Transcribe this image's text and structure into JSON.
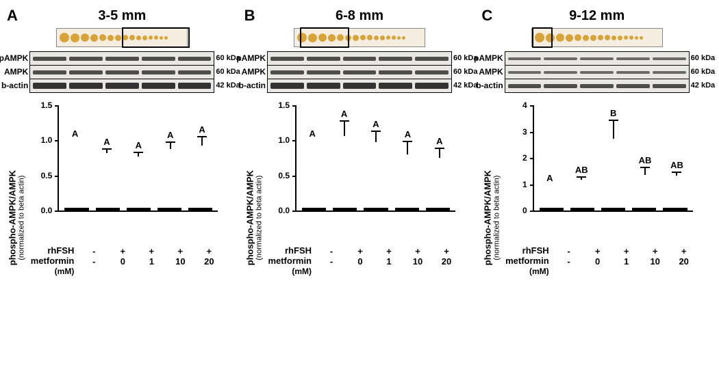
{
  "panels": [
    {
      "letter": "A",
      "title": "3-5 mm",
      "selbox": {
        "left_pct": 50,
        "width_pct": 50
      },
      "blot": {
        "rows": [
          "pAMPK",
          "AMPK",
          "b-actin"
        ],
        "kda": [
          "60 kDa",
          "60 kDa",
          "42 kDa"
        ],
        "band_class": [
          "mid",
          "mid",
          "thick"
        ]
      },
      "chart": {
        "ylim": [
          0,
          1.5
        ],
        "ytick_step": 0.5,
        "ylabel": "phospho-AMPK/AMPK",
        "ysub": "(normalized to beta actin)",
        "bars": [
          {
            "v": 1.0,
            "err": 0.0,
            "sig": "A",
            "fill": "open"
          },
          {
            "v": 0.82,
            "err": 0.07,
            "sig": "A",
            "fill": "dots"
          },
          {
            "v": 0.77,
            "err": 0.07,
            "sig": "A",
            "fill": "diag"
          },
          {
            "v": 0.88,
            "err": 0.1,
            "sig": "A",
            "fill": "grid"
          },
          {
            "v": 0.93,
            "err": 0.13,
            "sig": "A",
            "fill": "solid"
          }
        ]
      },
      "treat": {
        "rhFSH": [
          "-",
          "+",
          "+",
          "+",
          "+"
        ],
        "metformin": [
          "-",
          "0",
          "1",
          "10",
          "20"
        ]
      }
    },
    {
      "letter": "B",
      "title": "6-8 mm",
      "selbox": {
        "left_pct": 4,
        "width_pct": 36
      },
      "blot": {
        "rows": [
          "pAMPK",
          "AMPK",
          "b-actin"
        ],
        "kda": [
          "60 kDa",
          "60 kDa",
          "42 kDa"
        ],
        "band_class": [
          "mid",
          "mid",
          "thick"
        ]
      },
      "chart": {
        "ylim": [
          0,
          1.5
        ],
        "ytick_step": 0.5,
        "ylabel": "phospho-AMPK/AMPK",
        "ysub": "(normalized to beta actin)",
        "bars": [
          {
            "v": 1.0,
            "err": 0.0,
            "sig": "A",
            "fill": "open"
          },
          {
            "v": 1.06,
            "err": 0.23,
            "sig": "A",
            "fill": "dots"
          },
          {
            "v": 0.97,
            "err": 0.17,
            "sig": "A",
            "fill": "diag"
          },
          {
            "v": 0.8,
            "err": 0.19,
            "sig": "A",
            "fill": "grid"
          },
          {
            "v": 0.75,
            "err": 0.15,
            "sig": "A",
            "fill": "solid"
          }
        ]
      },
      "treat": {
        "rhFSH": [
          "-",
          "+",
          "+",
          "+",
          "+"
        ],
        "metformin": [
          "-",
          "0",
          "1",
          "10",
          "20"
        ]
      }
    },
    {
      "letter": "C",
      "title": "9-12 mm",
      "selbox": {
        "left_pct": 0,
        "width_pct": 14
      },
      "blot": {
        "rows": [
          "pAMPK",
          "AMPK",
          "b-actin"
        ],
        "kda": [
          "60 kDa",
          "60 kDa",
          "42 kDa"
        ],
        "band_class": [
          "thin",
          "thin",
          "mid"
        ]
      },
      "chart": {
        "ylim": [
          0,
          4
        ],
        "ytick_step": 1,
        "ylabel": "phospho-AMPK/AMPK",
        "ysub": "(normalized to beta actin)",
        "bars": [
          {
            "v": 1.0,
            "err": 0.0,
            "sig": "A",
            "fill": "open"
          },
          {
            "v": 1.16,
            "err": 0.15,
            "sig": "AB",
            "fill": "dots"
          },
          {
            "v": 2.74,
            "err": 0.72,
            "sig": "B",
            "fill": "diag"
          },
          {
            "v": 1.36,
            "err": 0.3,
            "sig": "AB",
            "fill": "grid"
          },
          {
            "v": 1.33,
            "err": 0.14,
            "sig": "AB",
            "fill": "solid"
          }
        ]
      },
      "treat": {
        "rhFSH": [
          "-",
          "+",
          "+",
          "+",
          "+"
        ],
        "metformin": [
          "-",
          "0",
          "1",
          "10",
          "20"
        ]
      }
    }
  ],
  "treat_labels": {
    "rhFSH": "rhFSH",
    "metformin": "metformin",
    "met_unit": "(mM)"
  },
  "colors": {
    "bead": "#d8a43a",
    "strip_bg": "#f5ede0"
  }
}
